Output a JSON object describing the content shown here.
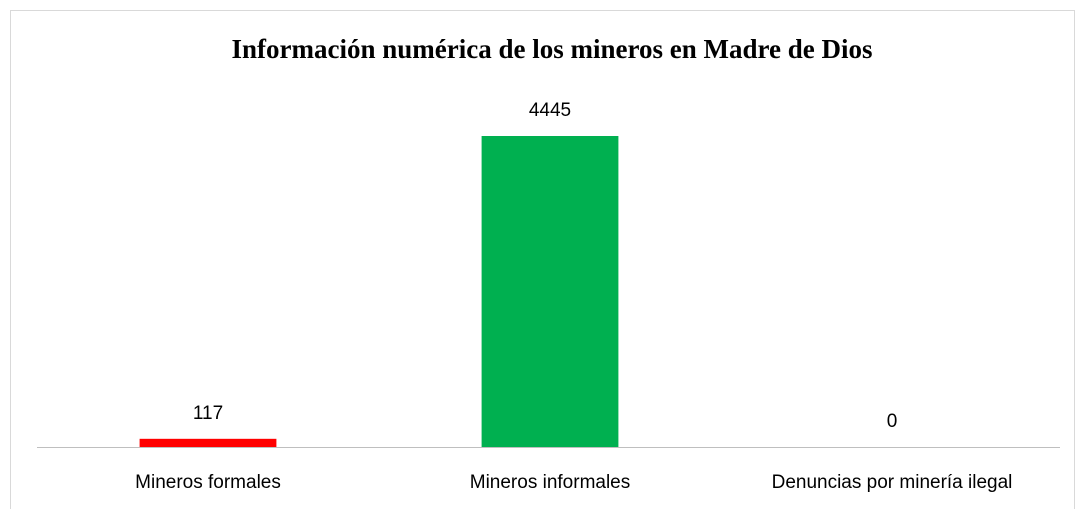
{
  "chart_data": {
    "type": "bar",
    "title": "Información numérica  de los mineros en Madre de Dios",
    "categories": [
      "Mineros formales",
      "Mineros informales",
      "Denuncias por minería ilegal"
    ],
    "values": [
      117,
      4445,
      0
    ],
    "colors": [
      "#ff0000",
      "#00b050",
      null
    ]
  }
}
